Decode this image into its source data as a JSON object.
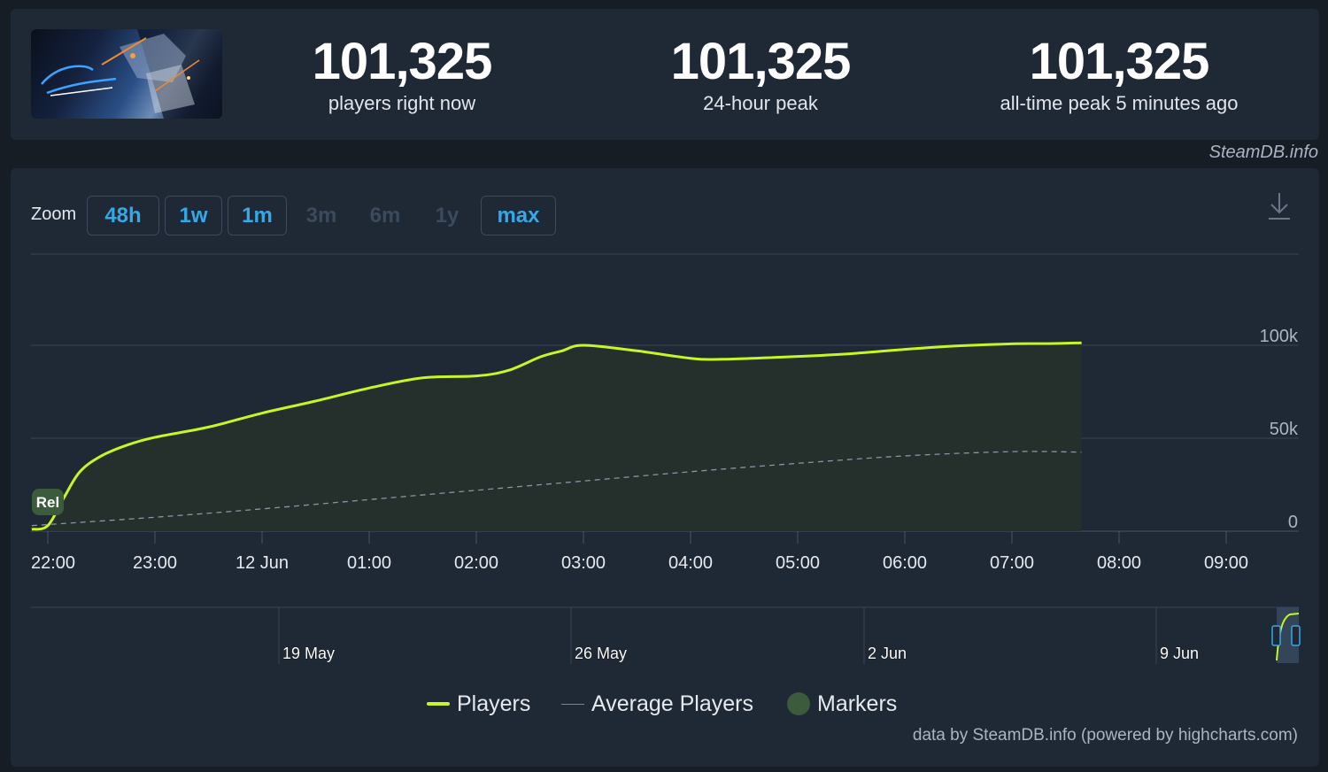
{
  "header": {
    "stats": [
      {
        "value": "101,325",
        "label": "players right now"
      },
      {
        "value": "101,325",
        "label": "24-hour peak"
      },
      {
        "value": "101,325",
        "label": "all-time peak 5 minutes ago"
      }
    ],
    "credit": "SteamDB.info"
  },
  "zoom": {
    "label": "Zoom",
    "buttons": [
      {
        "label": "48h",
        "enabled": true
      },
      {
        "label": "1w",
        "enabled": true
      },
      {
        "label": "1m",
        "enabled": true
      },
      {
        "label": "3m",
        "enabled": false
      },
      {
        "label": "6m",
        "enabled": false
      },
      {
        "label": "1y",
        "enabled": false
      },
      {
        "label": "max",
        "enabled": true
      }
    ]
  },
  "icons": {
    "download": "download-icon",
    "thumbnail": "game-thumbnail"
  },
  "colors": {
    "players": "#c4f724",
    "average": "#8a94a4",
    "marker": "#3c5a3c",
    "zoom_active": "#35a8e8"
  },
  "chart_data": {
    "type": "line",
    "x_ticks": [
      "22:00",
      "23:00",
      "12 Jun",
      "01:00",
      "02:00",
      "03:00",
      "04:00",
      "05:00",
      "06:00",
      "07:00",
      "08:00",
      "09:00"
    ],
    "y_ticks": [
      "0",
      "50k",
      "100k"
    ],
    "ylim": [
      0,
      100000
    ],
    "grid": true,
    "legend_position": "bottom-center",
    "series": [
      {
        "name": "Players",
        "x": [
          -0.15,
          0.0,
          0.15,
          0.3,
          0.5,
          0.75,
          1.0,
          1.5,
          2.0,
          2.5,
          3.0,
          3.5,
          4.0,
          4.3,
          4.6,
          4.8,
          5.0,
          5.5,
          6.0,
          6.3,
          7.0,
          7.5,
          8.0,
          8.5,
          9.0,
          9.35,
          9.65
        ],
        "y": [
          1000,
          3000,
          18000,
          32000,
          40500,
          46500,
          50500,
          56000,
          63500,
          70000,
          77000,
          82500,
          83500,
          86500,
          93800,
          97000,
          100000,
          97000,
          93000,
          92500,
          94000,
          95500,
          97800,
          99700,
          100800,
          100900,
          101325
        ]
      },
      {
        "name": "Average Players",
        "x": [
          -0.15,
          1.0,
          2.0,
          3.0,
          4.0,
          5.0,
          6.0,
          7.0,
          8.0,
          9.0,
          9.65
        ],
        "y": [
          3000,
          7500,
          12000,
          17000,
          22000,
          27000,
          32000,
          36500,
          40500,
          42800,
          42500
        ]
      }
    ],
    "markers": [
      {
        "label": "Rel",
        "x": 0.0
      }
    ],
    "navigator": {
      "labels": [
        "19 May",
        "26 May",
        "2 Jun",
        "9 Jun"
      ]
    },
    "legend": [
      "Players",
      "Average Players",
      "Markers"
    ],
    "credit": "data by SteamDB.info (powered by highcharts.com)"
  }
}
